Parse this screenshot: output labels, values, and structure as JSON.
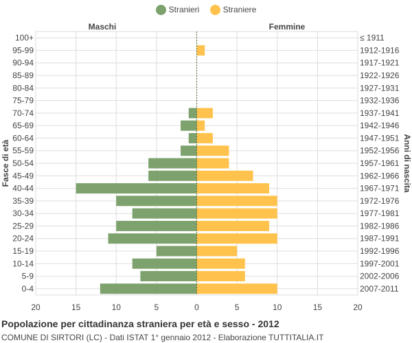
{
  "legend": {
    "male_label": "Stranieri",
    "female_label": "Straniere"
  },
  "colors": {
    "male": "#7da26d",
    "female": "#ffc34d",
    "grid": "#dddddd",
    "center_line": "#556b2f"
  },
  "footer": {
    "title": "Popolazione per cittadinanza straniera per età e sesso - 2012",
    "subtitle": "COMUNE DI SIRTORI (LC) - Dati ISTAT 1° gennaio 2012 - Elaborazione TUTTITALIA.IT"
  },
  "chart_data": {
    "type": "bar",
    "orientation": "horizontal-pyramid",
    "left_header": "Maschi",
    "right_header": "Femmine",
    "ylabel_left": "Fasce di età",
    "ylabel_right": "Anni di nascita",
    "xlim": [
      -20,
      20
    ],
    "xticks": [
      20,
      15,
      10,
      5,
      0,
      5,
      10,
      15,
      20
    ],
    "grid": true,
    "legend_position": "top-center",
    "age_groups": [
      "100+",
      "95-99",
      "90-94",
      "85-89",
      "80-84",
      "75-79",
      "70-74",
      "65-69",
      "60-64",
      "55-59",
      "50-54",
      "45-49",
      "40-44",
      "35-39",
      "30-34",
      "25-29",
      "20-24",
      "15-19",
      "10-14",
      "5-9",
      "0-4"
    ],
    "birth_years": [
      "≤ 1911",
      "1912-1916",
      "1917-1921",
      "1922-1926",
      "1927-1931",
      "1932-1936",
      "1937-1941",
      "1942-1946",
      "1947-1951",
      "1952-1956",
      "1957-1961",
      "1962-1966",
      "1967-1971",
      "1972-1976",
      "1977-1981",
      "1982-1986",
      "1987-1991",
      "1992-1996",
      "1997-2001",
      "2002-2006",
      "2007-2011"
    ],
    "series": [
      {
        "name": "Stranieri",
        "values": [
          0,
          0,
          0,
          0,
          0,
          0,
          1,
          2,
          1,
          2,
          6,
          6,
          15,
          10,
          8,
          10,
          11,
          5,
          8,
          7,
          12
        ]
      },
      {
        "name": "Straniere",
        "values": [
          0,
          1,
          0,
          0,
          0,
          0,
          2,
          1,
          2,
          4,
          4,
          7,
          9,
          10,
          10,
          9,
          10,
          5,
          6,
          6,
          10
        ]
      }
    ]
  }
}
